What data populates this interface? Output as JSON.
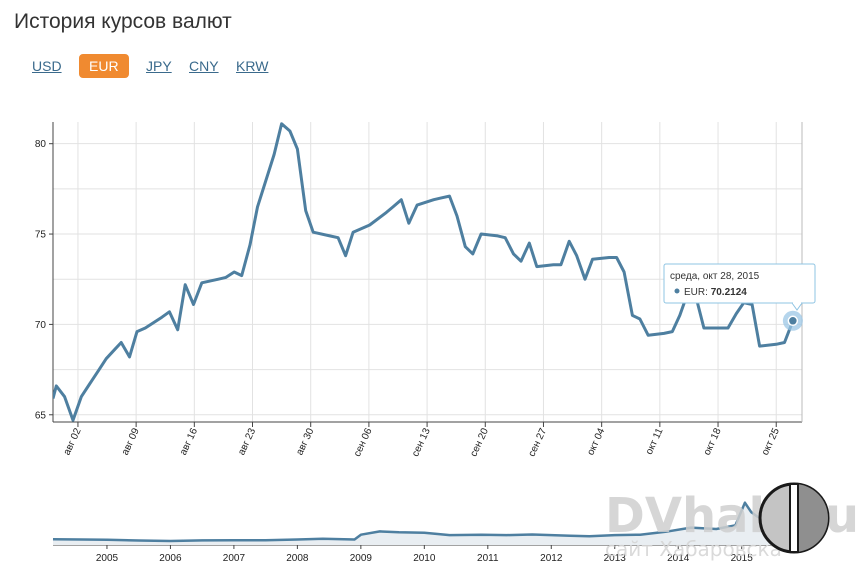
{
  "page": {
    "title": "История курсов валют"
  },
  "tabs": [
    {
      "label": "USD",
      "active": false
    },
    {
      "label": "EUR",
      "active": true
    },
    {
      "label": "JPY",
      "active": false
    },
    {
      "label": "CNY",
      "active": false
    },
    {
      "label": "KRW",
      "active": false
    }
  ],
  "tooltip": {
    "date": "среда, окт 28, 2015",
    "series": "EUR",
    "value": "70.2124"
  },
  "watermark": {
    "brand": "DVhab.ru",
    "tagline": "сайт Хабаровска"
  },
  "colors": {
    "accent": "#f08a30",
    "line": "#4e7fa0",
    "grid": "#e2e2e2",
    "nav_bg": "#e9eef2"
  },
  "chart_data": [
    {
      "type": "line",
      "title": "",
      "xlabel": "",
      "ylabel": "",
      "grid": true,
      "ylim": [
        64.6,
        81.2
      ],
      "y_ticks": [
        65,
        70,
        75,
        80
      ],
      "x_ticks": [
        {
          "label": "авг 02",
          "day": 3
        },
        {
          "label": "авг 09",
          "day": 10
        },
        {
          "label": "авг 16",
          "day": 17
        },
        {
          "label": "авг 23",
          "day": 24
        },
        {
          "label": "авг 30",
          "day": 31
        },
        {
          "label": "сен 06",
          "day": 38
        },
        {
          "label": "сен 13",
          "day": 45
        },
        {
          "label": "сен 20",
          "day": 52
        },
        {
          "label": "сен 27",
          "day": 59
        },
        {
          "label": "окт 04",
          "day": 66
        },
        {
          "label": "окт 11",
          "day": 73
        },
        {
          "label": "окт 18",
          "day": 80
        },
        {
          "label": "окт 25",
          "day": 87
        }
      ],
      "xlim_days": [
        0,
        90.1
      ],
      "series": [
        {
          "name": "EUR",
          "points": [
            [
              0,
              65.9
            ],
            [
              0.4,
              66.6
            ],
            [
              1.4,
              66.0
            ],
            [
              2.4,
              64.7
            ],
            [
              3.4,
              66.0
            ],
            [
              4.4,
              66.7
            ],
            [
              5.4,
              67.4
            ],
            [
              6.4,
              68.1
            ],
            [
              7.4,
              68.6
            ],
            [
              8.2,
              69.0
            ],
            [
              9.2,
              68.2
            ],
            [
              10.1,
              69.6
            ],
            [
              11.1,
              69.8
            ],
            [
              13.1,
              70.4
            ],
            [
              14.0,
              70.7
            ],
            [
              15.0,
              69.7
            ],
            [
              15.9,
              72.2
            ],
            [
              16.9,
              71.1
            ],
            [
              17.9,
              72.3
            ],
            [
              19.9,
              72.5
            ],
            [
              20.8,
              72.6
            ],
            [
              21.8,
              72.9
            ],
            [
              22.7,
              72.7
            ],
            [
              23.7,
              74.4
            ],
            [
              24.6,
              76.5
            ],
            [
              26.6,
              79.4
            ],
            [
              27.5,
              81.1
            ],
            [
              28.5,
              80.7
            ],
            [
              29.4,
              79.7
            ],
            [
              30.4,
              76.3
            ],
            [
              31.3,
              75.1
            ],
            [
              33.3,
              74.9
            ],
            [
              34.3,
              74.8
            ],
            [
              35.2,
              73.8
            ],
            [
              36.1,
              75.1
            ],
            [
              37.1,
              75.3
            ],
            [
              38.1,
              75.5
            ],
            [
              40.1,
              76.2
            ],
            [
              40.9,
              76.5
            ],
            [
              41.9,
              76.9
            ],
            [
              42.8,
              75.6
            ],
            [
              43.8,
              76.6
            ],
            [
              45.8,
              76.9
            ],
            [
              46.7,
              77.0
            ],
            [
              47.7,
              77.1
            ],
            [
              48.6,
              76.0
            ],
            [
              49.6,
              74.3
            ],
            [
              50.5,
              73.9
            ],
            [
              51.5,
              75.0
            ],
            [
              53.5,
              74.9
            ],
            [
              54.4,
              74.8
            ],
            [
              55.4,
              73.9
            ],
            [
              56.3,
              73.5
            ],
            [
              57.3,
              74.5
            ],
            [
              58.2,
              73.2
            ],
            [
              60.2,
              73.3
            ],
            [
              61.1,
              73.3
            ],
            [
              62.1,
              74.6
            ],
            [
              63.0,
              73.8
            ],
            [
              64.0,
              72.5
            ],
            [
              64.9,
              73.6
            ],
            [
              66.9,
              73.7
            ],
            [
              67.8,
              73.7
            ],
            [
              68.7,
              72.9
            ],
            [
              69.7,
              70.5
            ],
            [
              70.6,
              70.3
            ],
            [
              71.6,
              69.4
            ],
            [
              73.5,
              69.5
            ],
            [
              74.5,
              69.6
            ],
            [
              75.4,
              70.5
            ],
            [
              76.4,
              71.8
            ],
            [
              77.3,
              71.6
            ],
            [
              78.3,
              69.8
            ],
            [
              80.2,
              69.8
            ],
            [
              81.2,
              69.8
            ],
            [
              82.2,
              70.6
            ],
            [
              83.1,
              71.2
            ],
            [
              84.1,
              71.1
            ],
            [
              85.0,
              68.8
            ],
            [
              87.0,
              68.9
            ],
            [
              88.0,
              69.0
            ],
            [
              89.0,
              70.2
            ]
          ]
        }
      ]
    },
    {
      "type": "line",
      "title": "",
      "x_ticks": [
        "2005",
        "2006",
        "2007",
        "2008",
        "2009",
        "2010",
        "2011",
        "2012",
        "2013",
        "2014",
        "2015"
      ],
      "xlim": [
        2004.15,
        2015.95
      ],
      "series": [
        {
          "name": "EUR",
          "points": [
            [
              2004.15,
              36.2
            ],
            [
              2004.6,
              35.8
            ],
            [
              2005.0,
              35.6
            ],
            [
              2005.5,
              34.8
            ],
            [
              2006.0,
              34.3
            ],
            [
              2006.5,
              34.9
            ],
            [
              2007.0,
              35.0
            ],
            [
              2007.5,
              35.1
            ],
            [
              2008.0,
              35.9
            ],
            [
              2008.4,
              36.6
            ],
            [
              2008.9,
              35.8
            ],
            [
              2009.0,
              41.0
            ],
            [
              2009.3,
              44.5
            ],
            [
              2009.6,
              43.5
            ],
            [
              2010.0,
              43.0
            ],
            [
              2010.4,
              40.5
            ],
            [
              2010.9,
              41.0
            ],
            [
              2011.3,
              40.5
            ],
            [
              2011.7,
              41.2
            ],
            [
              2012.0,
              40.5
            ],
            [
              2012.3,
              39.9
            ],
            [
              2012.6,
              39.3
            ],
            [
              2013.0,
              40.5
            ],
            [
              2013.4,
              41.0
            ],
            [
              2013.8,
              44.0
            ],
            [
              2014.2,
              48.5
            ],
            [
              2014.6,
              47.0
            ],
            [
              2014.9,
              51.0
            ],
            [
              2015.05,
              75.0
            ],
            [
              2015.15,
              65.0
            ],
            [
              2015.25,
              60.0
            ],
            [
              2015.5,
              58.0
            ],
            [
              2015.7,
              62.0
            ],
            [
              2015.8,
              76.0
            ],
            [
              2015.95,
              70.2
            ]
          ]
        }
      ]
    }
  ]
}
